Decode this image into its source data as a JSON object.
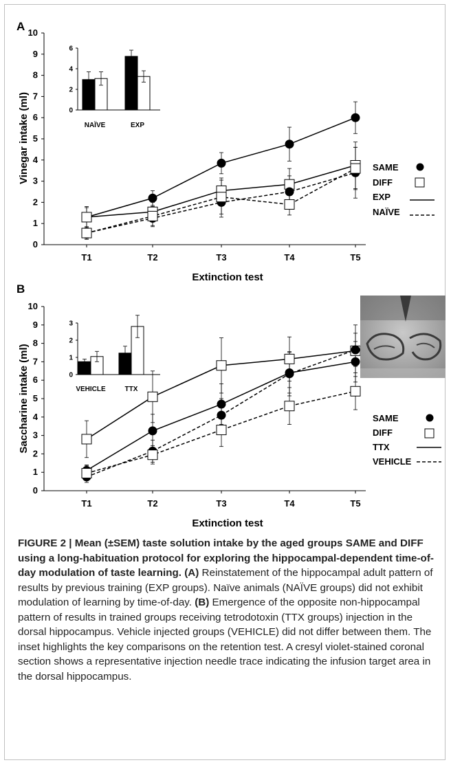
{
  "panels": [
    {
      "label": "A",
      "ylabel": "Vinegar intake (ml)",
      "xlabel": "Extinction test",
      "legend": [
        "SAME",
        "DIFF",
        "EXP",
        "NAÏVE"
      ]
    },
    {
      "label": "B",
      "ylabel": "Saccharine intake (ml)",
      "xlabel": "Extinction test",
      "legend": [
        "SAME",
        "DIFF",
        "TTX",
        "VEHICLE"
      ]
    }
  ],
  "caption": {
    "title": "FIGURE 2 | Mean (±SEM) taste solution intake by the aged groups SAME and DIFF using a long-habituation protocol for exploring the hippocampal-dependent time-of-day modulation of taste learning.",
    "a_label": "(A)",
    "a_text": "Reinstatement of the hippocampal adult pattern of results by previous training (EXP groups). Naïve animals (NAÏVE groups) did not exhibit modulation of learning by time-of-day.",
    "b_label": "(B)",
    "b_text": "Emergence of the opposite non-hippocampal pattern of results in trained groups receiving tetrodotoxin (TTX groups) injection in the dorsal hippocampus. Vehicle injected groups (VEHICLE) did not differ between them. The inset highlights the key comparisons on the retention test. A cresyl violet-stained coronal section shows a representative injection needle trace indicating the infusion target area in the dorsal hippocampus."
  },
  "chart_data": [
    {
      "type": "line",
      "panel": "A",
      "xlabel": "Extinction test",
      "ylabel": "Vinegar intake (ml)",
      "categories": [
        "T1",
        "T2",
        "T3",
        "T4",
        "T5"
      ],
      "ylim": [
        0,
        10
      ],
      "yticks": [
        "0",
        "1",
        "2",
        "3",
        "4",
        "5",
        "6",
        "7",
        "8",
        "9",
        "10"
      ],
      "series": [
        {
          "name": "SAME",
          "group": "EXP",
          "marker": "filled-circle",
          "line": "solid",
          "values": [
            1.3,
            2.2,
            3.85,
            4.75,
            6.0
          ],
          "err": [
            0.45,
            0.35,
            0.5,
            0.8,
            0.75
          ]
        },
        {
          "name": "DIFF",
          "group": "EXP",
          "marker": "open-square",
          "line": "solid",
          "values": [
            1.3,
            1.55,
            2.55,
            2.85,
            3.75
          ],
          "err": [
            0.5,
            0.45,
            0.6,
            0.75,
            1.1
          ]
        },
        {
          "name": "SAME",
          "group": "NAÏVE",
          "marker": "filled-circle",
          "line": "dashed",
          "values": [
            0.55,
            1.25,
            2.0,
            2.5,
            3.4
          ],
          "err": [
            0.25,
            0.4,
            0.7,
            0.75,
            1.2
          ]
        },
        {
          "name": "DIFF",
          "group": "NAÏVE",
          "marker": "open-square",
          "line": "dashed",
          "values": [
            0.55,
            1.35,
            2.25,
            1.9,
            3.6
          ],
          "err": [
            0.3,
            0.45,
            0.8,
            0.5,
            1.0
          ]
        }
      ],
      "inset": {
        "type": "bar",
        "categories": [
          "NAÏVE",
          "EXP"
        ],
        "ylim": [
          0,
          6
        ],
        "yticks": [
          "0",
          "2",
          "4",
          "6"
        ],
        "series": [
          {
            "name": "SAME",
            "fill": "black",
            "values": [
              2.95,
              5.2
            ],
            "err": [
              0.75,
              0.6
            ]
          },
          {
            "name": "DIFF",
            "fill": "white",
            "values": [
              3.05,
              3.25
            ],
            "err": [
              0.65,
              0.55
            ]
          }
        ]
      }
    },
    {
      "type": "line",
      "panel": "B",
      "xlabel": "Extinction test",
      "ylabel": "Saccharine intake (ml)",
      "categories": [
        "T1",
        "T2",
        "T3",
        "T4",
        "T5"
      ],
      "ylim": [
        0,
        10
      ],
      "yticks": [
        "0",
        "1",
        "2",
        "3",
        "4",
        "5",
        "6",
        "7",
        "8",
        "9",
        "10"
      ],
      "series": [
        {
          "name": "SAME",
          "group": "TTX",
          "marker": "filled-circle",
          "line": "solid",
          "values": [
            1.1,
            3.25,
            4.7,
            6.4,
            7.0
          ],
          "err": [
            0.3,
            0.9,
            1.1,
            1.1,
            1.1
          ]
        },
        {
          "name": "DIFF",
          "group": "TTX",
          "marker": "open-square",
          "line": "solid",
          "values": [
            2.8,
            5.1,
            6.8,
            7.15,
            7.6
          ],
          "err": [
            1.0,
            1.4,
            1.5,
            1.2,
            1.4
          ]
        },
        {
          "name": "SAME",
          "group": "VEHICLE",
          "marker": "filled-circle",
          "line": "dashed",
          "values": [
            0.75,
            2.15,
            4.1,
            6.35,
            7.65
          ],
          "err": [
            0.3,
            0.6,
            0.9,
            1.2,
            0.9
          ]
        },
        {
          "name": "DIFF",
          "group": "VEHICLE",
          "marker": "open-square",
          "line": "dashed",
          "values": [
            0.95,
            1.95,
            3.3,
            4.6,
            5.4
          ],
          "err": [
            0.4,
            0.5,
            0.9,
            1.0,
            1.0
          ]
        }
      ],
      "inset": {
        "type": "bar",
        "categories": [
          "VEHICLE",
          "TTX"
        ],
        "ylim": [
          0,
          3
        ],
        "yticks": [
          "0",
          "1",
          "2",
          "3"
        ],
        "series": [
          {
            "name": "SAME",
            "fill": "black",
            "values": [
              0.75,
              1.25
            ],
            "err": [
              0.15,
              0.4
            ]
          },
          {
            "name": "DIFF",
            "fill": "white",
            "values": [
              1.05,
              2.8
            ],
            "err": [
              0.3,
              0.65
            ]
          }
        ]
      }
    }
  ]
}
